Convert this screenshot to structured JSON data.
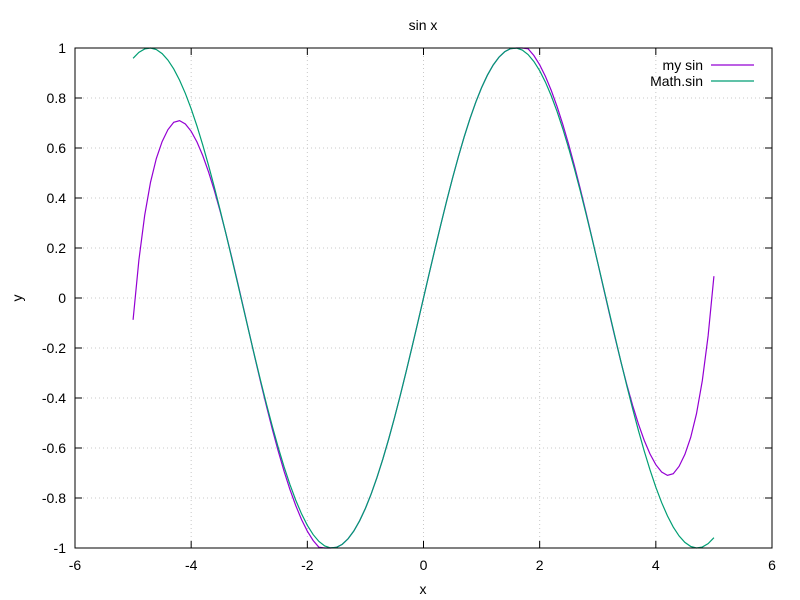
{
  "chart_data": {
    "type": "line",
    "title": "sin x",
    "xlabel": "x",
    "ylabel": "y",
    "xlim": [
      -6,
      6
    ],
    "ylim": [
      -1,
      1
    ],
    "x_ticks": [
      -6,
      -4,
      -2,
      0,
      2,
      4,
      6
    ],
    "x_tick_labels": [
      "-6",
      "-4",
      "-2",
      "0",
      "2",
      "4",
      "6"
    ],
    "y_ticks": [
      -1,
      -0.8,
      -0.6,
      -0.4,
      -0.2,
      0,
      0.2,
      0.4,
      0.6,
      0.8,
      1
    ],
    "y_tick_labels": [
      "-1",
      "-0.8",
      "-0.6",
      "-0.4",
      "-0.2",
      "0",
      "0.2",
      "0.4",
      "0.6",
      "0.8",
      "1"
    ],
    "grid": true,
    "legend_position": "top-right",
    "series": [
      {
        "name": "my sin",
        "color": "#9400d3",
        "x": [
          -5,
          -4.9,
          -4.8,
          -4.7,
          -4.6,
          -4.5,
          -4.4,
          -4.3,
          -4.2,
          -4.1,
          -4.0,
          -3.9,
          -3.8,
          -3.7,
          -3.6,
          -3.5,
          -3.4,
          -3.3,
          -3.2,
          -3.1,
          -3.0,
          -2.9,
          -2.8,
          -2.7,
          -2.6,
          -2.5,
          -2.4,
          -2.3,
          -2.2,
          -2.1,
          -2.0,
          -1.9,
          -1.8,
          -1.7,
          -1.6,
          -1.5,
          -1.4,
          -1.3,
          -1.2,
          -1.1,
          -1.0,
          -0.9,
          -0.8,
          -0.7,
          -0.6,
          -0.5,
          -0.4,
          -0.3,
          -0.2,
          -0.1,
          0.0,
          0.1,
          0.2,
          0.3,
          0.4,
          0.5,
          0.6,
          0.7,
          0.8,
          0.9,
          1.0,
          1.1,
          1.2,
          1.3,
          1.4,
          1.5,
          1.6,
          1.7,
          1.8,
          1.9,
          2.0,
          2.1,
          2.2,
          2.3,
          2.4,
          2.5,
          2.6,
          2.7,
          2.8,
          2.9,
          3.0,
          3.1,
          3.2,
          3.3,
          3.4,
          3.5,
          3.6,
          3.7,
          3.8,
          3.9,
          4.0,
          4.1,
          4.2,
          4.3,
          4.4,
          4.5,
          4.6,
          4.7,
          4.8,
          4.9,
          5.0
        ],
        "y": [
          -0.0871,
          0.1519,
          0.331,
          0.4628,
          0.558,
          0.6258,
          0.6734,
          0.7028,
          0.7094,
          0.6962,
          0.6668,
          0.624,
          0.5694,
          0.5039,
          0.429,
          0.346,
          0.2562,
          0.1612,
          0.0624,
          -0.0387,
          -0.1403,
          -0.2413,
          -0.3403,
          -0.4361,
          -0.5276,
          -0.6136,
          -0.6932,
          -0.7655,
          -0.83,
          -0.8859,
          -0.9327,
          -0.9699,
          -0.9971,
          -1.0,
          -1.0,
          -0.9975,
          -0.9854,
          -0.9636,
          -0.932,
          -0.8912,
          -0.8415,
          -0.7833,
          -0.7174,
          -0.6442,
          -0.5646,
          -0.4794,
          -0.3894,
          -0.2955,
          -0.1987,
          -0.0998,
          0.0,
          0.0998,
          0.1987,
          0.2955,
          0.3894,
          0.4794,
          0.5646,
          0.6442,
          0.7174,
          0.7833,
          0.8415,
          0.8912,
          0.932,
          0.9636,
          0.9854,
          0.9975,
          1.0,
          1.0,
          0.9971,
          0.9699,
          0.9327,
          0.8859,
          0.83,
          0.7655,
          0.6932,
          0.6136,
          0.5276,
          0.4361,
          0.3403,
          0.2413,
          0.1403,
          0.0387,
          -0.0624,
          -0.1612,
          -0.2562,
          -0.346,
          -0.429,
          -0.5039,
          -0.5694,
          -0.624,
          -0.6668,
          -0.6962,
          -0.7094,
          -0.7028,
          -0.6734,
          -0.6258,
          -0.558,
          -0.4628,
          -0.331,
          -0.1519,
          0.0871
        ]
      },
      {
        "name": "Math.sin",
        "color": "#009e73",
        "x": [
          -5,
          -4.9,
          -4.8,
          -4.7,
          -4.6,
          -4.5,
          -4.4,
          -4.3,
          -4.2,
          -4.1,
          -4.0,
          -3.9,
          -3.8,
          -3.7,
          -3.6,
          -3.5,
          -3.4,
          -3.3,
          -3.2,
          -3.1,
          -3.0,
          -2.9,
          -2.8,
          -2.7,
          -2.6,
          -2.5,
          -2.4,
          -2.3,
          -2.2,
          -2.1,
          -2.0,
          -1.9,
          -1.8,
          -1.7,
          -1.6,
          -1.5,
          -1.4,
          -1.3,
          -1.2,
          -1.1,
          -1.0,
          -0.9,
          -0.8,
          -0.7,
          -0.6,
          -0.5,
          -0.4,
          -0.3,
          -0.2,
          -0.1,
          0.0,
          0.1,
          0.2,
          0.3,
          0.4,
          0.5,
          0.6,
          0.7,
          0.8,
          0.9,
          1.0,
          1.1,
          1.2,
          1.3,
          1.4,
          1.5,
          1.6,
          1.7,
          1.8,
          1.9,
          2.0,
          2.1,
          2.2,
          2.3,
          2.4,
          2.5,
          2.6,
          2.7,
          2.8,
          2.9,
          3.0,
          3.1,
          3.2,
          3.3,
          3.4,
          3.5,
          3.6,
          3.7,
          3.8,
          3.9,
          4.0,
          4.1,
          4.2,
          4.3,
          4.4,
          4.5,
          4.6,
          4.7,
          4.8,
          4.9,
          5.0
        ],
        "y": [
          0.9589,
          0.9825,
          0.9962,
          0.9999,
          0.9937,
          0.9775,
          0.9516,
          0.9162,
          0.8716,
          0.8183,
          0.7568,
          0.6878,
          0.6119,
          0.5298,
          0.4425,
          0.3508,
          0.2555,
          0.1577,
          0.0584,
          -0.0416,
          -0.1411,
          -0.2392,
          -0.335,
          -0.4274,
          -0.5155,
          -0.5985,
          -0.6755,
          -0.7457,
          -0.8085,
          -0.8632,
          -0.9093,
          -0.9463,
          -0.9738,
          -0.9917,
          -0.9996,
          -0.9975,
          -0.9854,
          -0.9636,
          -0.932,
          -0.8912,
          -0.8415,
          -0.7833,
          -0.7174,
          -0.6442,
          -0.5646,
          -0.4794,
          -0.3894,
          -0.2955,
          -0.1987,
          -0.0998,
          0.0,
          0.0998,
          0.1987,
          0.2955,
          0.3894,
          0.4794,
          0.5646,
          0.6442,
          0.7174,
          0.7833,
          0.8415,
          0.8912,
          0.932,
          0.9636,
          0.9854,
          0.9975,
          0.9996,
          0.9917,
          0.9738,
          0.9463,
          0.9093,
          0.8632,
          0.8085,
          0.7457,
          0.6755,
          0.5985,
          0.5155,
          0.4274,
          0.335,
          0.2392,
          0.1411,
          0.0416,
          -0.0584,
          -0.1577,
          -0.2555,
          -0.3508,
          -0.4425,
          -0.5298,
          -0.6119,
          -0.6878,
          -0.7568,
          -0.8183,
          -0.8716,
          -0.9162,
          -0.9516,
          -0.9775,
          -0.9937,
          -0.9999,
          -0.9962,
          -0.9825,
          -0.9589
        ]
      }
    ]
  }
}
